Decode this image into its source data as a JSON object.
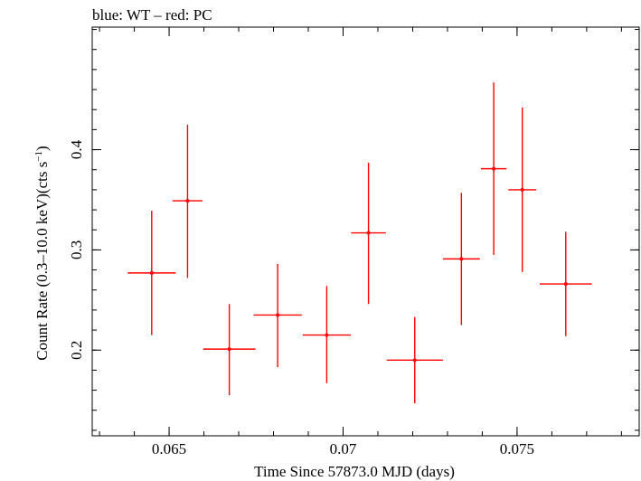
{
  "chart_data": {
    "type": "scatter",
    "title": "blue: WT – red: PC",
    "xlabel": "Time Since 57873.0 MJD (days)",
    "ylabel_main": "Count Rate (0.3–10.0 keV)(cts s",
    "ylabel_sup": "−1",
    "ylabel_end": ")",
    "xlim": [
      0.06279,
      0.07851
    ],
    "ylim": [
      0.1145,
      0.5223
    ],
    "x_ticks": [
      {
        "value": 0.065,
        "label": "0.065"
      },
      {
        "value": 0.07,
        "label": "0.07"
      },
      {
        "value": 0.075,
        "label": "0.075"
      }
    ],
    "y_ticks": [
      {
        "value": 0.2,
        "label": "0.2"
      },
      {
        "value": 0.3,
        "label": "0.3"
      },
      {
        "value": 0.4,
        "label": "0.4"
      }
    ],
    "x_minor_step": 0.001,
    "y_minor_step": 0.02,
    "series": [
      {
        "name": "PC",
        "color": "#ff0000",
        "points": [
          {
            "x": 0.0645,
            "xerr": 0.00069,
            "y": 0.277,
            "yerr_low": 0.062,
            "yerr_high": 0.062
          },
          {
            "x": 0.06553,
            "xerr": 0.00043,
            "y": 0.349,
            "yerr_low": 0.077,
            "yerr_high": 0.076
          },
          {
            "x": 0.06673,
            "xerr": 0.00075,
            "y": 0.201,
            "yerr_low": 0.046,
            "yerr_high": 0.045
          },
          {
            "x": 0.06812,
            "xerr": 0.00069,
            "y": 0.235,
            "yerr_low": 0.052,
            "yerr_high": 0.051
          },
          {
            "x": 0.06953,
            "xerr": 0.00069,
            "y": 0.215,
            "yerr_low": 0.048,
            "yerr_high": 0.049
          },
          {
            "x": 0.07073,
            "xerr": 0.0005,
            "y": 0.317,
            "yerr_low": 0.071,
            "yerr_high": 0.07
          },
          {
            "x": 0.07206,
            "xerr": 0.00081,
            "y": 0.19,
            "yerr_low": 0.043,
            "yerr_high": 0.043
          },
          {
            "x": 0.0734,
            "xerr": 0.00053,
            "y": 0.291,
            "yerr_low": 0.066,
            "yerr_high": 0.066
          },
          {
            "x": 0.07433,
            "xerr": 0.00037,
            "y": 0.381,
            "yerr_low": 0.086,
            "yerr_high": 0.086
          },
          {
            "x": 0.07515,
            "xerr": 0.0004,
            "y": 0.36,
            "yerr_low": 0.082,
            "yerr_high": 0.082
          },
          {
            "x": 0.0764,
            "xerr": 0.00075,
            "y": 0.266,
            "yerr_low": 0.052,
            "yerr_high": 0.052
          }
        ]
      }
    ]
  }
}
